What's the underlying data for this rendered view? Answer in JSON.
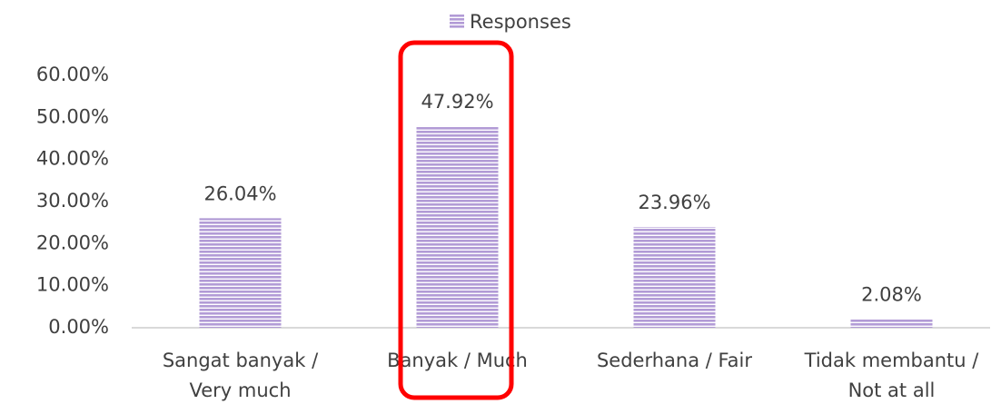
{
  "chart_data": {
    "type": "bar",
    "legend": "Responses",
    "categories": [
      [
        "Sangat banyak /",
        "Very much"
      ],
      [
        "Banyak / Much"
      ],
      [
        "Sederhana / Fair"
      ],
      [
        "Tidak membantu /",
        "Not at all"
      ]
    ],
    "values": [
      26.04,
      47.92,
      23.96,
      2.08
    ],
    "value_labels": [
      "26.04%",
      "47.92%",
      "23.96%",
      "2.08%"
    ],
    "color": "#b29bd6",
    "ylim": [
      0,
      60
    ],
    "yticks": [
      {
        "value": 0,
        "label": "0.00%"
      },
      {
        "value": 10,
        "label": "10.00%"
      },
      {
        "value": 20,
        "label": "20.00%"
      },
      {
        "value": 30,
        "label": "30.00%"
      },
      {
        "value": 40,
        "label": "40.00%"
      },
      {
        "value": 50,
        "label": "50.00%"
      },
      {
        "value": 60,
        "label": "60.00%"
      }
    ],
    "grid": false
  }
}
